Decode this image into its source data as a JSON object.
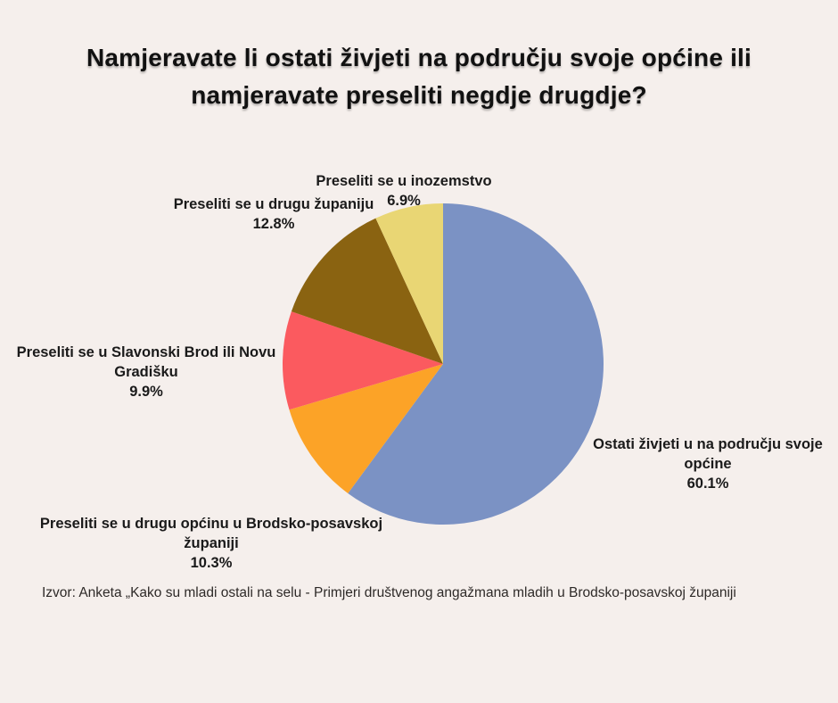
{
  "page": {
    "background_color": "#f5efec"
  },
  "chart_data": {
    "type": "pie",
    "title": "Namjeravate li ostati živjeti na području svoje općine ili namjeravate preseliti negdje drugdje?",
    "source_note": "Izvor: Anketa „Kako su mladi ostali na selu - Primjeri društvenog angažmana mladih u Brodsko-posavskoj županiji",
    "start_angle_deg": -90,
    "direction": "clockwise",
    "legend_position": "none",
    "total_percent": 100,
    "slices": [
      {
        "label": "Ostati živjeti u na području svoje općine",
        "value": 60.1,
        "pct_label": "60.1%",
        "color": "#7b92c4"
      },
      {
        "label": "Preseliti se u drugu općinu u Brodsko-posavskoj županiji",
        "value": 10.3,
        "pct_label": "10.3%",
        "color": "#fca327"
      },
      {
        "label": "Preseliti se u Slavonski Brod ili Novu Gradišku",
        "value": 9.9,
        "pct_label": "9.9%",
        "color": "#fb5a5f"
      },
      {
        "label": "Preseliti se u drugu županiju",
        "value": 12.8,
        "pct_label": "12.8%",
        "color": "#8a6311"
      },
      {
        "label": "Preseliti se u inozemstvo",
        "value": 6.9,
        "pct_label": "6.9%",
        "color": "#e9d674"
      }
    ]
  }
}
